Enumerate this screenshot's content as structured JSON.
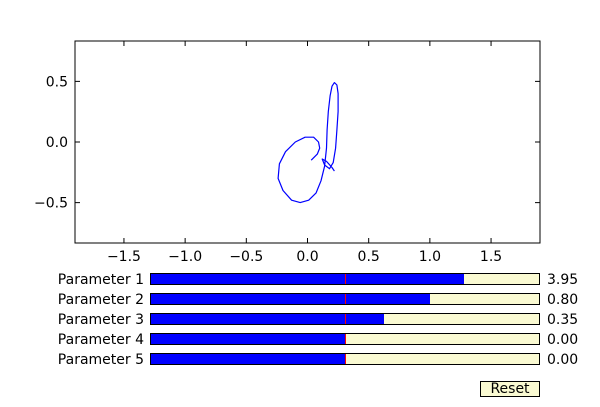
{
  "chart_data": {
    "type": "line",
    "xlim": [
      -1.9,
      1.9
    ],
    "ylim": [
      -0.833,
      0.833
    ],
    "xticks": [
      {
        "value": -1.5,
        "label": "−1.5"
      },
      {
        "value": -1.0,
        "label": "−1.0"
      },
      {
        "value": -0.5,
        "label": "−0.5"
      },
      {
        "value": 0.0,
        "label": "0.0"
      },
      {
        "value": 0.5,
        "label": "0.5"
      },
      {
        "value": 1.0,
        "label": "1.0"
      },
      {
        "value": 1.5,
        "label": "1.5"
      }
    ],
    "yticks": [
      {
        "value": 0.5,
        "label": "0.5"
      },
      {
        "value": 0.0,
        "label": "0.0"
      },
      {
        "value": -0.5,
        "label": "−0.5"
      }
    ],
    "grid": false,
    "line_color": "#0000ff",
    "series": [
      {
        "points": [
          [
            0.03,
            -0.15
          ],
          [
            0.08,
            -0.1
          ],
          [
            0.1,
            -0.05
          ],
          [
            0.09,
            0.0
          ],
          [
            0.05,
            0.04
          ],
          [
            -0.02,
            0.04
          ],
          [
            -0.1,
            0.0
          ],
          [
            -0.18,
            -0.08
          ],
          [
            -0.23,
            -0.18
          ],
          [
            -0.24,
            -0.3
          ],
          [
            -0.2,
            -0.4
          ],
          [
            -0.13,
            -0.48
          ],
          [
            -0.06,
            -0.5
          ],
          [
            0.01,
            -0.48
          ],
          [
            0.07,
            -0.42
          ],
          [
            0.11,
            -0.32
          ],
          [
            0.14,
            -0.2
          ],
          [
            0.155,
            -0.05
          ],
          [
            0.16,
            0.1
          ],
          [
            0.17,
            0.25
          ],
          [
            0.185,
            0.38
          ],
          [
            0.2,
            0.46
          ],
          [
            0.22,
            0.49
          ],
          [
            0.24,
            0.47
          ],
          [
            0.25,
            0.4
          ],
          [
            0.25,
            0.25
          ],
          [
            0.24,
            0.1
          ],
          [
            0.23,
            -0.05
          ],
          [
            0.21,
            -0.17
          ],
          [
            0.18,
            -0.22
          ],
          [
            0.14,
            -0.19
          ],
          [
            0.12,
            -0.14
          ],
          [
            0.155,
            -0.16
          ],
          [
            0.2,
            -0.21
          ],
          [
            0.22,
            -0.24
          ]
        ]
      }
    ]
  },
  "sliders": [
    {
      "label": "Parameter 1",
      "value_text": "3.95",
      "fraction": 0.806,
      "init_fraction": 0.5
    },
    {
      "label": "Parameter 2",
      "value_text": "0.80",
      "fraction": 0.72,
      "init_fraction": 0.5
    },
    {
      "label": "Parameter 3",
      "value_text": "0.35",
      "fraction": 0.6,
      "init_fraction": 0.5
    },
    {
      "label": "Parameter 4",
      "value_text": "0.00",
      "fraction": 0.5,
      "init_fraction": 0.5
    },
    {
      "label": "Parameter 5",
      "value_text": "0.00",
      "fraction": 0.5,
      "init_fraction": 0.5
    }
  ],
  "reset": {
    "label": "Reset"
  },
  "colors": {
    "slider_fill": "#0000ff",
    "slider_track": "#fafad2",
    "init_marker": "#ff0000",
    "button_bg": "#fafad2"
  }
}
